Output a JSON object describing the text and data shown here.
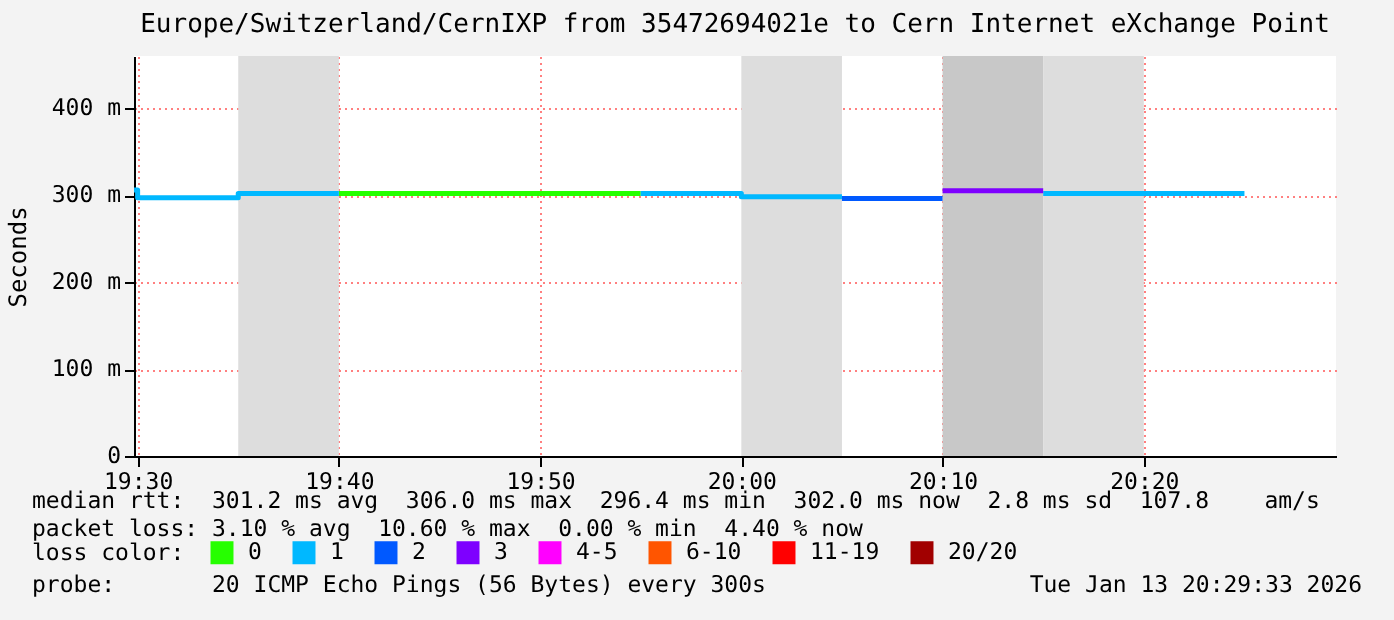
{
  "chart_data": {
    "type": "step",
    "title": "Europe/Switzerland/CernIXP from 35472694021e to Cern Internet eXchange Point",
    "ylabel": "Seconds",
    "legend_title": "loss color:",
    "xlim": [
      19.497,
      20.4925
    ],
    "xticks": [
      {
        "value": 19.5,
        "label": "19:30"
      },
      {
        "value": 19.666667,
        "label": "19:40"
      },
      {
        "value": 19.833333,
        "label": "19:50"
      },
      {
        "value": 20,
        "label": "20:00"
      },
      {
        "value": 20.166667,
        "label": "20:10"
      },
      {
        "value": 20.333333,
        "label": "20:20"
      }
    ],
    "ylim": [
      0,
      460
    ],
    "yticks": [
      0,
      {
        "value": 100,
        "label": "100 m"
      },
      {
        "value": 200,
        "label": "200 m"
      },
      {
        "value": 300,
        "label": "300 m"
      },
      {
        "value": 400,
        "label": "400 m"
      }
    ],
    "grid": true,
    "legend": "bottom",
    "bands": [
      {
        "axis": "x",
        "from": 19.583333,
        "to": 19.666667,
        "color": "#dddddd"
      },
      {
        "axis": "x",
        "from": 20,
        "to": 20.083333,
        "color": "#dddddd"
      },
      {
        "axis": "x",
        "from": 20.166667,
        "to": 20.25,
        "color": "#c8c8c8"
      },
      {
        "axis": "x",
        "from": 20.25,
        "to": 20.333333,
        "color": "#dddddd"
      }
    ],
    "series": [
      {
        "name": "0",
        "color": "#26ff00",
        "x": [
          19.666667,
          19.916667
        ],
        "values": [
          302,
          302
        ]
      },
      {
        "name": "1",
        "color": "#00b8ff",
        "x": [
          19.497,
          19.5,
          19.583333,
          19.666667,
          null,
          19.916667,
          20,
          20.083333,
          null,
          20.25,
          20.416667
        ],
        "values": [
          306,
          297,
          302,
          302,
          null,
          302,
          298,
          298,
          null,
          302,
          302
        ]
      },
      {
        "name": "2",
        "color": "#0059ff",
        "x": [
          20.083333,
          20.166667
        ],
        "values": [
          296,
          296
        ]
      },
      {
        "name": "3",
        "color": "#7e00ff",
        "x": [
          20.166667,
          20.25
        ],
        "values": [
          305,
          305
        ]
      },
      {
        "name": "4-5",
        "color": "#ff00ff"
      },
      {
        "name": "6-10",
        "color": "#ff5500"
      },
      {
        "name": "11-19",
        "color": "#ff0000"
      },
      {
        "name": "20/20",
        "color": "#a10000"
      }
    ],
    "annotations": [
      "median rtt:  301.2 ms avg  306.0 ms max  296.4 ms min  302.0 ms now  2.8 ms sd  107.8    am/s",
      "packet loss: 3.10 % avg  10.60 % max  0.00 % min  4.40 % now",
      "probe:       20 ICMP Echo Pings (56 Bytes) every 300s",
      "Tue Jan 13 20:29:33 2026"
    ]
  }
}
